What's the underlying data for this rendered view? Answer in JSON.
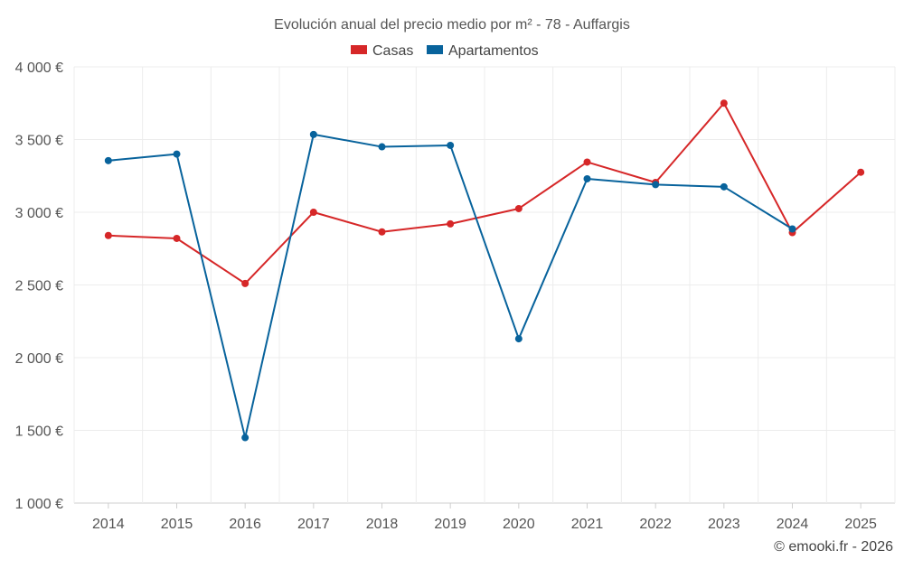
{
  "chart_data": {
    "type": "line",
    "title": "Evolución anual del precio medio por m² - 78 - Auffargis",
    "categories": [
      "2014",
      "2015",
      "2016",
      "2017",
      "2018",
      "2019",
      "2020",
      "2021",
      "2022",
      "2023",
      "2024",
      "2025"
    ],
    "ylim": [
      1000,
      4000
    ],
    "yticks": [
      1000,
      1500,
      2000,
      2500,
      3000,
      3500,
      4000
    ],
    "ytick_labels": [
      "1 000 €",
      "1 500 €",
      "2 000 €",
      "2 500 €",
      "3 000 €",
      "3 500 €",
      "4 000 €"
    ],
    "grid": true,
    "legend_position": "top-center",
    "series": [
      {
        "name": "Casas",
        "color": "#d62728",
        "values": [
          2840,
          2820,
          2510,
          3000,
          2865,
          2920,
          3025,
          3345,
          3205,
          3750,
          2860,
          3275
        ]
      },
      {
        "name": "Apartamentos",
        "color": "#08639c",
        "values": [
          3355,
          3400,
          1450,
          3535,
          3450,
          3460,
          2130,
          3230,
          3190,
          3175,
          2885,
          null
        ]
      }
    ]
  },
  "credit": "© emooki.fr - 2026"
}
